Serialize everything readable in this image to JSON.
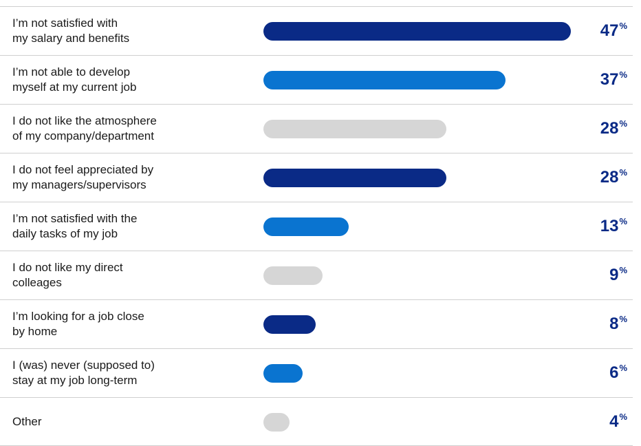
{
  "chart_data": {
    "type": "bar",
    "orientation": "horizontal",
    "unit": "%",
    "categories": [
      "I’m not satisfied with\nmy salary and benefits",
      "I’m not able to develop\nmyself at my current job",
      "I do not like the atmosphere\nof my company/department",
      "I do not feel appreciated by\nmy managers/supervisors",
      "I’m not satisfied with the\ndaily tasks of my job",
      "I do not like my direct\ncolleages",
      "I’m looking for a job close\nby home",
      "I (was) never (supposed to)\nstay at my job long-term",
      "Other"
    ],
    "values": [
      47,
      37,
      28,
      28,
      13,
      9,
      8,
      6,
      4
    ],
    "colors": [
      "#0a2a86",
      "#0a74d0",
      "#d6d6d6",
      "#0a2a86",
      "#0a74d0",
      "#d6d6d6",
      "#0a2a86",
      "#0a74d0",
      "#d6d6d6"
    ],
    "value_color": "#0a2a86",
    "ylim": [
      0,
      47
    ]
  }
}
